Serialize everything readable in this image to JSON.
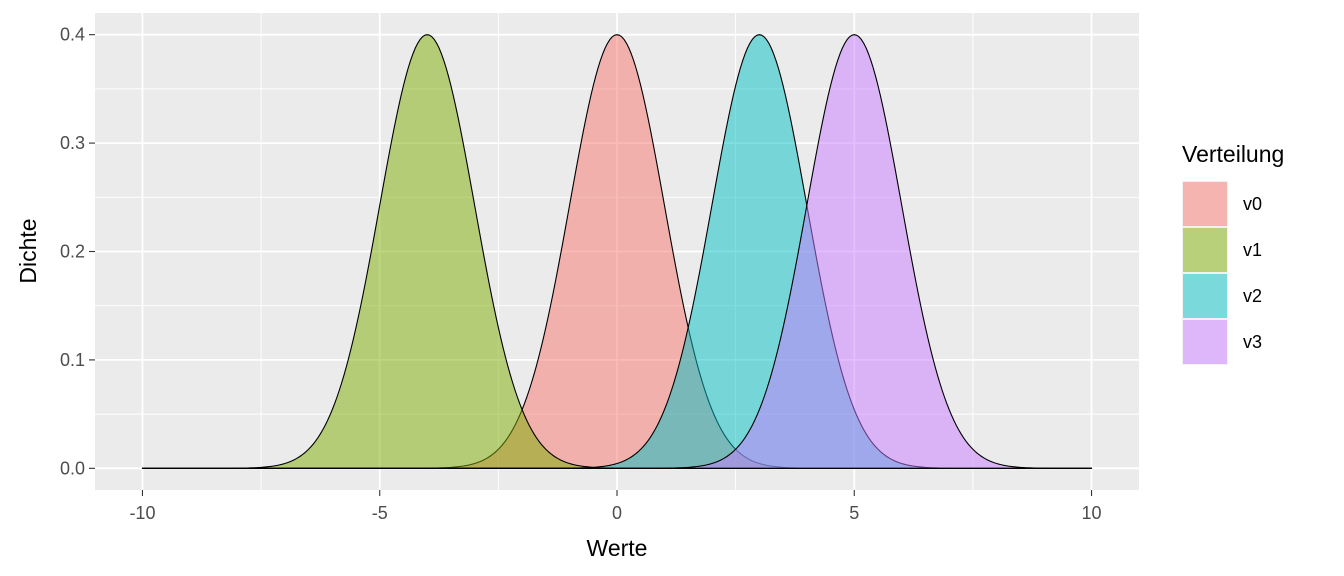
{
  "chart_data": {
    "type": "area",
    "subtype": "density",
    "xlabel": "Werte",
    "ylabel": "Dichte",
    "xlim": [
      -11,
      11
    ],
    "ylim": [
      -0.02,
      0.42
    ],
    "xticks": [
      -10,
      -5,
      0,
      5,
      10
    ],
    "xtick_labels": [
      "-10",
      "-5",
      "0",
      "5",
      "10"
    ],
    "yticks": [
      0.0,
      0.1,
      0.2,
      0.3,
      0.4
    ],
    "ytick_labels": [
      "0.0",
      "0.1",
      "0.2",
      "0.3",
      "0.4"
    ],
    "x_range": [
      -10,
      10
    ],
    "grid": true,
    "panel_background": "#ebebeb",
    "fill_opacity": 0.5,
    "outline_color": "#000000",
    "legend": {
      "title": "Verteilung",
      "position": "right"
    },
    "series": [
      {
        "name": "v0",
        "distribution": "normal",
        "mean": 0,
        "sd": 1,
        "peak": 0.4,
        "color": "#F8766D"
      },
      {
        "name": "v1",
        "distribution": "normal",
        "mean": -4,
        "sd": 1,
        "peak": 0.4,
        "color": "#7CAE00"
      },
      {
        "name": "v2",
        "distribution": "normal",
        "mean": 3,
        "sd": 1,
        "peak": 0.4,
        "color": "#00BFC4"
      },
      {
        "name": "v3",
        "distribution": "normal",
        "mean": 5,
        "sd": 1,
        "peak": 0.4,
        "color": "#C77CFF"
      }
    ]
  }
}
